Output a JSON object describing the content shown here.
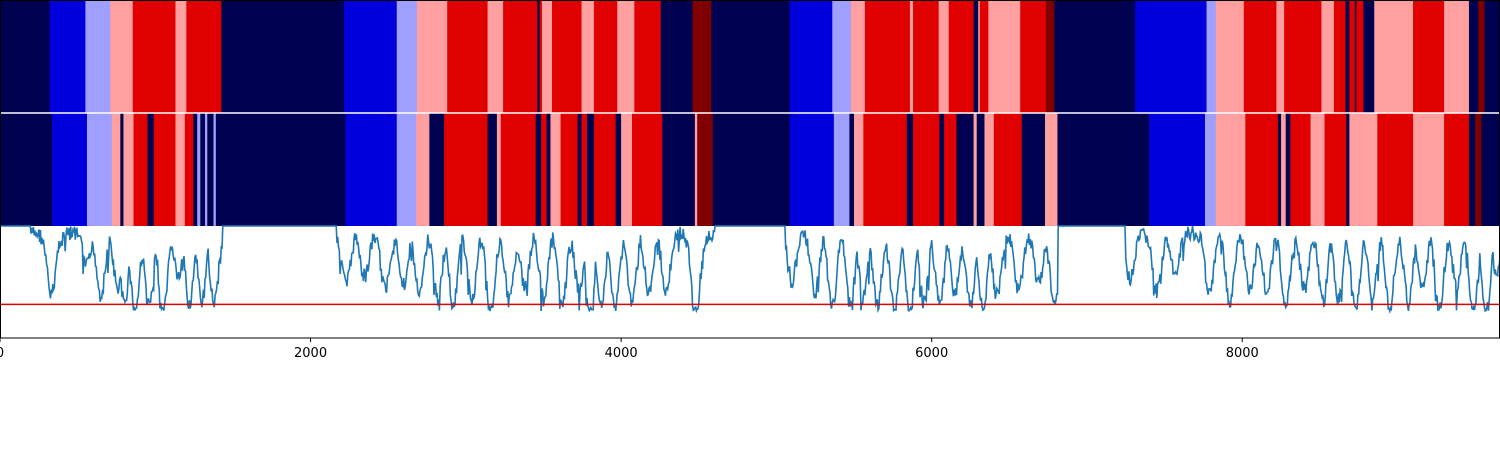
{
  "chart_data": {
    "type": "segmentation_strips_with_line",
    "xlim": [
      0,
      9660
    ],
    "xticks": [
      0,
      2000,
      4000,
      6000,
      8000
    ],
    "xtick_labels": [
      "0",
      "2000",
      "4000",
      "6000",
      "8000"
    ],
    "class_colors": [
      "#000050",
      "#0000dd",
      "#9f9fff",
      "#ff9f9f",
      "#e00000",
      "#800000"
    ],
    "strips": [
      {
        "name": "top",
        "segments": [
          [
            0,
            320,
            0
          ],
          [
            320,
            550,
            1
          ],
          [
            550,
            710,
            2
          ],
          [
            710,
            855,
            3
          ],
          [
            855,
            1130,
            4
          ],
          [
            1130,
            1200,
            3
          ],
          [
            1200,
            1425,
            4
          ],
          [
            1425,
            2215,
            0
          ],
          [
            2215,
            2555,
            1
          ],
          [
            2555,
            2685,
            2
          ],
          [
            2685,
            2880,
            3
          ],
          [
            2880,
            3140,
            4
          ],
          [
            3140,
            3240,
            3
          ],
          [
            3240,
            3460,
            4
          ],
          [
            3460,
            3475,
            0
          ],
          [
            3475,
            3490,
            4
          ],
          [
            3490,
            3555,
            3
          ],
          [
            3555,
            3745,
            4
          ],
          [
            3745,
            3825,
            3
          ],
          [
            3825,
            3975,
            4
          ],
          [
            3975,
            4085,
            3
          ],
          [
            4085,
            4255,
            4
          ],
          [
            4255,
            4460,
            0
          ],
          [
            4460,
            4580,
            5
          ],
          [
            4580,
            5085,
            0
          ],
          [
            5085,
            5360,
            1
          ],
          [
            5360,
            5480,
            2
          ],
          [
            5480,
            5570,
            3
          ],
          [
            5570,
            5860,
            4
          ],
          [
            5860,
            5880,
            3
          ],
          [
            5880,
            6045,
            4
          ],
          [
            6045,
            6110,
            3
          ],
          [
            6110,
            6270,
            4
          ],
          [
            6270,
            6300,
            0
          ],
          [
            6300,
            6310,
            3
          ],
          [
            6310,
            6365,
            4
          ],
          [
            6365,
            6570,
            3
          ],
          [
            6570,
            6735,
            4
          ],
          [
            6735,
            6790,
            5
          ],
          [
            6790,
            7310,
            0
          ],
          [
            7310,
            7770,
            1
          ],
          [
            7770,
            7830,
            2
          ],
          [
            7830,
            8010,
            3
          ],
          [
            8010,
            8220,
            4
          ],
          [
            8220,
            8270,
            3
          ],
          [
            8270,
            8510,
            4
          ],
          [
            8510,
            8590,
            3
          ],
          [
            8590,
            8665,
            4
          ],
          [
            8665,
            8690,
            0
          ],
          [
            8690,
            8725,
            4
          ],
          [
            8725,
            8735,
            0
          ],
          [
            8735,
            8780,
            4
          ],
          [
            8780,
            8850,
            0
          ],
          [
            8850,
            8910,
            3
          ],
          [
            8910,
            9100,
            3
          ],
          [
            9100,
            9300,
            4
          ],
          [
            9300,
            9460,
            3
          ],
          [
            9460,
            9520,
            0
          ],
          [
            9520,
            9560,
            5
          ],
          [
            9560,
            9660,
            0
          ]
        ]
      },
      {
        "name": "bottom",
        "segments": [
          [
            0,
            335,
            0
          ],
          [
            335,
            560,
            1
          ],
          [
            560,
            720,
            2
          ],
          [
            720,
            775,
            3
          ],
          [
            775,
            795,
            0
          ],
          [
            795,
            860,
            3
          ],
          [
            860,
            950,
            4
          ],
          [
            950,
            990,
            0
          ],
          [
            990,
            1130,
            4
          ],
          [
            1130,
            1190,
            3
          ],
          [
            1190,
            1245,
            4
          ],
          [
            1245,
            1270,
            0
          ],
          [
            1270,
            1290,
            2
          ],
          [
            1290,
            1320,
            0
          ],
          [
            1320,
            1335,
            2
          ],
          [
            1335,
            1375,
            0
          ],
          [
            1375,
            1390,
            2
          ],
          [
            1390,
            2225,
            0
          ],
          [
            2225,
            2255,
            1
          ],
          [
            2255,
            2555,
            1
          ],
          [
            2555,
            2680,
            2
          ],
          [
            2680,
            2765,
            3
          ],
          [
            2765,
            2860,
            0
          ],
          [
            2860,
            3140,
            4
          ],
          [
            3140,
            3200,
            0
          ],
          [
            3200,
            3225,
            3
          ],
          [
            3225,
            3450,
            4
          ],
          [
            3450,
            3485,
            0
          ],
          [
            3485,
            3520,
            4
          ],
          [
            3520,
            3545,
            0
          ],
          [
            3545,
            3610,
            3
          ],
          [
            3610,
            3720,
            4
          ],
          [
            3720,
            3745,
            0
          ],
          [
            3745,
            3780,
            4
          ],
          [
            3780,
            3825,
            0
          ],
          [
            3825,
            3965,
            4
          ],
          [
            3965,
            4000,
            0
          ],
          [
            4000,
            4070,
            3
          ],
          [
            4070,
            4265,
            4
          ],
          [
            4265,
            4475,
            0
          ],
          [
            4475,
            4490,
            3
          ],
          [
            4490,
            4590,
            5
          ],
          [
            4590,
            5085,
            0
          ],
          [
            5085,
            5370,
            1
          ],
          [
            5370,
            5470,
            2
          ],
          [
            5470,
            5500,
            0
          ],
          [
            5500,
            5560,
            3
          ],
          [
            5560,
            5840,
            4
          ],
          [
            5840,
            5880,
            0
          ],
          [
            5880,
            6050,
            4
          ],
          [
            6050,
            6080,
            0
          ],
          [
            6080,
            6160,
            4
          ],
          [
            6160,
            6270,
            0
          ],
          [
            6270,
            6290,
            3
          ],
          [
            6290,
            6340,
            0
          ],
          [
            6340,
            6400,
            3
          ],
          [
            6400,
            6580,
            4
          ],
          [
            6580,
            6730,
            0
          ],
          [
            6730,
            6810,
            3
          ],
          [
            6810,
            7400,
            0
          ],
          [
            7400,
            7760,
            1
          ],
          [
            7760,
            7830,
            2
          ],
          [
            7830,
            8020,
            3
          ],
          [
            8020,
            8230,
            4
          ],
          [
            8230,
            8250,
            0
          ],
          [
            8250,
            8280,
            3
          ],
          [
            8280,
            8310,
            0
          ],
          [
            8310,
            8440,
            4
          ],
          [
            8440,
            8530,
            3
          ],
          [
            8530,
            8670,
            4
          ],
          [
            8670,
            8690,
            0
          ],
          [
            8690,
            8870,
            3
          ],
          [
            8870,
            9100,
            4
          ],
          [
            9100,
            9300,
            3
          ],
          [
            9300,
            9460,
            4
          ],
          [
            9460,
            9500,
            0
          ],
          [
            9500,
            9540,
            5
          ],
          [
            9540,
            9660,
            0
          ]
        ]
      }
    ],
    "signal": {
      "ylim": [
        0,
        1
      ],
      "threshold": 0.3,
      "threshold_color": "#e00000",
      "line_color": "#1f77b4",
      "active_ranges": [
        [
          200,
          1430
        ],
        [
          2170,
          4600
        ],
        [
          5060,
          6810
        ],
        [
          7250,
          9660
        ]
      ],
      "dips": [
        [
          330,
          0.45
        ],
        [
          560,
          0.72
        ],
        [
          650,
          0.45
        ],
        [
          760,
          0.5
        ],
        [
          800,
          0.38
        ],
        [
          870,
          0.3
        ],
        [
          960,
          0.35
        ],
        [
          1050,
          0.3
        ],
        [
          1150,
          0.62
        ],
        [
          1220,
          0.38
        ],
        [
          1300,
          0.42
        ],
        [
          1380,
          0.4
        ],
        [
          2230,
          0.55
        ],
        [
          2350,
          0.62
        ],
        [
          2480,
          0.5
        ],
        [
          2600,
          0.55
        ],
        [
          2700,
          0.45
        ],
        [
          2820,
          0.42
        ],
        [
          2920,
          0.35
        ],
        [
          3040,
          0.42
        ],
        [
          3160,
          0.3
        ],
        [
          3280,
          0.4
        ],
        [
          3380,
          0.52
        ],
        [
          3500,
          0.42
        ],
        [
          3620,
          0.35
        ],
        [
          3730,
          0.48
        ],
        [
          3800,
          0.28
        ],
        [
          3870,
          0.35
        ],
        [
          3960,
          0.32
        ],
        [
          4070,
          0.38
        ],
        [
          4180,
          0.45
        ],
        [
          4290,
          0.5
        ],
        [
          4480,
          0.22
        ],
        [
          5100,
          0.58
        ],
        [
          5250,
          0.48
        ],
        [
          5360,
          0.35
        ],
        [
          5480,
          0.4
        ],
        [
          5560,
          0.42
        ],
        [
          5650,
          0.35
        ],
        [
          5760,
          0.32
        ],
        [
          5860,
          0.28
        ],
        [
          5950,
          0.38
        ],
        [
          6050,
          0.4
        ],
        [
          6150,
          0.45
        ],
        [
          6250,
          0.36
        ],
        [
          6330,
          0.32
        ],
        [
          6420,
          0.45
        ],
        [
          6560,
          0.5
        ],
        [
          6690,
          0.55
        ],
        [
          6790,
          0.38
        ],
        [
          7280,
          0.6
        ],
        [
          7450,
          0.48
        ],
        [
          7570,
          0.65
        ],
        [
          7790,
          0.45
        ],
        [
          7920,
          0.38
        ],
        [
          8050,
          0.5
        ],
        [
          8160,
          0.48
        ],
        [
          8280,
          0.35
        ],
        [
          8400,
          0.5
        ],
        [
          8520,
          0.38
        ],
        [
          8620,
          0.42
        ],
        [
          8730,
          0.32
        ],
        [
          8840,
          0.45
        ],
        [
          8950,
          0.32
        ],
        [
          9070,
          0.38
        ],
        [
          9160,
          0.48
        ],
        [
          9270,
          0.32
        ],
        [
          9380,
          0.55
        ],
        [
          9490,
          0.3
        ],
        [
          9570,
          0.28
        ],
        [
          9640,
          0.65
        ]
      ]
    }
  }
}
